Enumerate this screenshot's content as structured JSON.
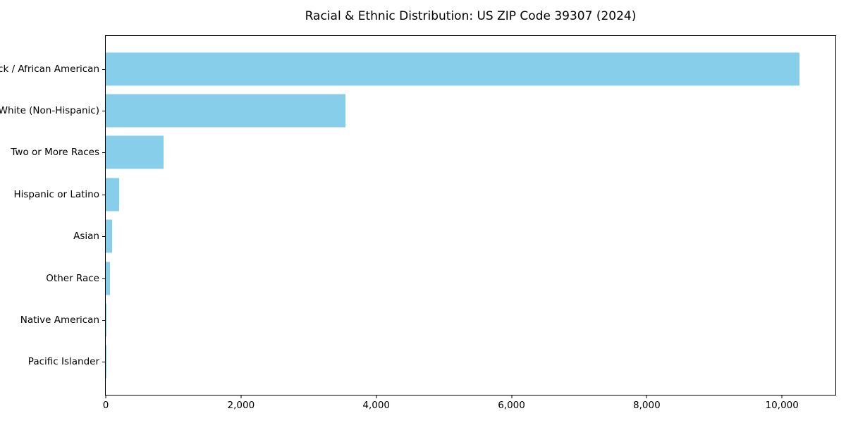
{
  "title": "Racial & Ethnic Distribution: US ZIP Code 39307 (2024)",
  "colors": {
    "bar": "#87CEEB",
    "axis": "#000000",
    "background": "#FFFFFF",
    "text": "#000000"
  },
  "chart_data": {
    "type": "bar",
    "orientation": "horizontal",
    "title": "Racial & Ethnic Distribution: US ZIP Code 39307 (2024)",
    "xlabel": "",
    "ylabel": "",
    "categories": [
      "Black / African American",
      "White (Non-Hispanic)",
      "Two or More Races",
      "Hispanic or Latino",
      "Asian",
      "Other Race",
      "Native American",
      "Pacific Islander"
    ],
    "values": [
      10260,
      3540,
      850,
      200,
      90,
      60,
      10,
      5
    ],
    "xlim": [
      0,
      10790
    ],
    "x_ticks": [
      0,
      2000,
      4000,
      6000,
      8000,
      10000
    ],
    "x_tick_labels": [
      "0",
      "2,000",
      "4,000",
      "6,000",
      "8,000",
      "10,000"
    ],
    "bar_color": "#87CEEB",
    "grid": false,
    "legend_position": "none"
  }
}
